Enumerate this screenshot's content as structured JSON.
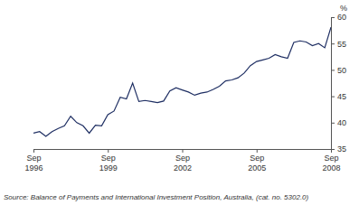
{
  "chart_data": {
    "type": "line",
    "y_label": "%",
    "source": "Source: Balance of Payments and International Investment Position, Australia, (cat. no. 5302.0)",
    "categories": [
      "Sep 1996",
      null,
      null,
      null,
      null,
      null,
      null,
      null,
      null,
      null,
      null,
      null,
      "Sep 1999",
      null,
      null,
      null,
      null,
      null,
      null,
      null,
      null,
      null,
      null,
      null,
      "Sep 2002",
      null,
      null,
      null,
      null,
      null,
      null,
      null,
      null,
      null,
      null,
      null,
      "Sep 2005",
      null,
      null,
      null,
      null,
      null,
      null,
      null,
      null,
      null,
      null,
      null,
      "Sep 2008"
    ],
    "values": [
      38.0,
      38.3,
      37.4,
      38.3,
      38.9,
      39.4,
      41.2,
      40.0,
      39.4,
      38.0,
      39.5,
      39.4,
      41.5,
      42.2,
      44.8,
      44.5,
      47.5,
      44.0,
      44.2,
      44.0,
      43.8,
      44.1,
      46.0,
      46.6,
      46.2,
      45.8,
      45.2,
      45.6,
      45.8,
      46.3,
      46.9,
      47.9,
      48.1,
      48.5,
      49.4,
      50.8,
      51.6,
      51.9,
      52.2,
      52.9,
      52.5,
      52.2,
      55.2,
      55.5,
      55.3,
      54.6,
      55.0,
      54.2,
      58.1
    ],
    "color": "#1f2f63",
    "ylim": [
      35,
      60
    ],
    "yticks": [
      35,
      40,
      45,
      50,
      55,
      60
    ],
    "grid": false
  }
}
